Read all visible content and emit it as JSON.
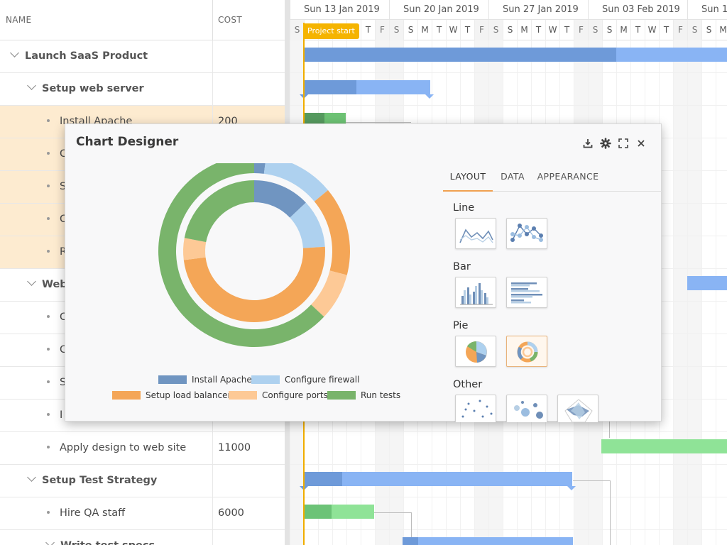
{
  "grid": {
    "columns": {
      "name": "NAME",
      "cost": "COST"
    },
    "rows": [
      {
        "name": "Launch SaaS Product",
        "cost": "",
        "level": 0,
        "type": "parent",
        "selected": false
      },
      {
        "name": "Setup web server",
        "cost": "",
        "level": 1,
        "type": "parent",
        "selected": false
      },
      {
        "name": "Install Apache",
        "cost": "200",
        "level": 2,
        "type": "leaf",
        "selected": true
      },
      {
        "name": "C",
        "cost": "",
        "level": 2,
        "type": "leaf",
        "selected": true
      },
      {
        "name": "S",
        "cost": "",
        "level": 2,
        "type": "leaf",
        "selected": true
      },
      {
        "name": "C",
        "cost": "",
        "level": 2,
        "type": "leaf",
        "selected": true
      },
      {
        "name": "R",
        "cost": "",
        "level": 2,
        "type": "leaf",
        "selected": true
      },
      {
        "name": "Web",
        "cost": "",
        "level": 1,
        "type": "parent",
        "selected": false
      },
      {
        "name": "C",
        "cost": "",
        "level": 2,
        "type": "leaf",
        "selected": false
      },
      {
        "name": "C",
        "cost": "",
        "level": 2,
        "type": "leaf",
        "selected": false
      },
      {
        "name": "S",
        "cost": "",
        "level": 2,
        "type": "leaf",
        "selected": false
      },
      {
        "name": "I",
        "cost": "",
        "level": 2,
        "type": "leaf",
        "selected": false
      },
      {
        "name": "Apply design to web site",
        "cost": "11000",
        "level": 2,
        "type": "leaf",
        "selected": false
      },
      {
        "name": "Setup Test Strategy",
        "cost": "",
        "level": 1,
        "type": "parent",
        "selected": false
      },
      {
        "name": "Hire QA staff",
        "cost": "6000",
        "level": 2,
        "type": "leaf",
        "selected": false
      },
      {
        "name": "Write test specs",
        "cost": "",
        "level": 2,
        "type": "parent",
        "selected": false
      }
    ]
  },
  "timeline": {
    "weeks": [
      "Sun 13 Jan 2019",
      "Sun 20 Jan 2019",
      "Sun 27 Jan 2019",
      "Sun 03 Feb 2019",
      "Sun 10"
    ],
    "days": [
      "S",
      "S",
      "M",
      "T",
      "W",
      "T",
      "F",
      "S",
      "S",
      "M",
      "T",
      "W",
      "T",
      "F",
      "S",
      "S",
      "M",
      "T",
      "W",
      "T",
      "F",
      "S",
      "S",
      "M",
      "T",
      "W",
      "T",
      "F",
      "S",
      "S",
      "M",
      "T"
    ],
    "project_start_label": "Project start"
  },
  "dialog": {
    "title": "Chart Designer",
    "tools": [
      "download-icon",
      "gear-icon",
      "fullscreen-icon",
      "close-icon"
    ],
    "tabs": [
      "LAYOUT",
      "DATA",
      "APPEARANCE"
    ],
    "active_tab": "LAYOUT",
    "groups": [
      {
        "label": "Line",
        "thumbs": [
          "line-chart",
          "line-markers-chart"
        ],
        "selected": -1
      },
      {
        "label": "Bar",
        "thumbs": [
          "column-chart",
          "horizontal-bar-chart"
        ],
        "selected": -1
      },
      {
        "label": "Pie",
        "thumbs": [
          "pie-chart",
          "donut-chart"
        ],
        "selected": 1
      },
      {
        "label": "Other",
        "thumbs": [
          "scatter-chart",
          "bubble-chart",
          "radar-chart"
        ],
        "selected": -1
      }
    ]
  },
  "chart_data": {
    "type": "pie",
    "title": "",
    "series_labels": [
      "Install Apache",
      "Configure firewall",
      "Setup load balancer",
      "Configure ports",
      "Run tests"
    ],
    "colors": [
      "#7095c1",
      "#aed1ef",
      "#f4a657",
      "#fdc996",
      "#79b46b"
    ],
    "series": [
      {
        "name": "",
        "values": [
          2,
          12,
          15,
          8,
          63
        ]
      },
      {
        "name": "",
        "values": [
          13,
          11,
          49,
          5,
          22
        ]
      }
    ],
    "legend_position": "bottom"
  }
}
